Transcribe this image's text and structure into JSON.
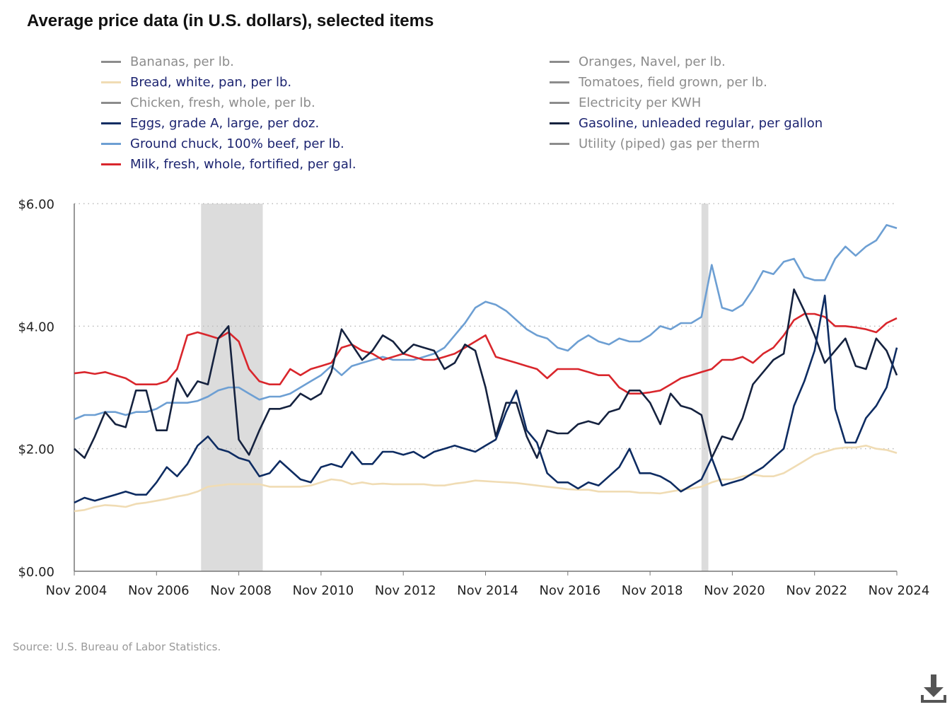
{
  "title": "Average price data (in U.S. dollars), selected items",
  "legend": {
    "left": [
      {
        "label": "Bananas, per lb.",
        "selected": false,
        "color": "#8c8c8c"
      },
      {
        "label": "Bread, white, pan, per lb.",
        "selected": true,
        "color": "#f0dcb4"
      },
      {
        "label": "Chicken, fresh, whole, per lb.",
        "selected": false,
        "color": "#8c8c8c"
      },
      {
        "label": "Eggs, grade A, large, per doz.",
        "selected": true,
        "color": "#0e2c62"
      },
      {
        "label": "Ground chuck, 100% beef, per lb.",
        "selected": true,
        "color": "#6d9fd3"
      },
      {
        "label": "Milk, fresh, whole, fortified, per gal.",
        "selected": true,
        "color": "#d9262c"
      }
    ],
    "right": [
      {
        "label": "Oranges, Navel, per lb.",
        "selected": false,
        "color": "#8c8c8c"
      },
      {
        "label": "Tomatoes, field grown, per lb.",
        "selected": false,
        "color": "#8c8c8c"
      },
      {
        "label": "Electricity per KWH",
        "selected": false,
        "color": "#8c8c8c"
      },
      {
        "label": "Gasoline, unleaded regular, per gallon",
        "selected": true,
        "color": "#15223f"
      },
      {
        "label": "Utility (piped) gas per therm",
        "selected": false,
        "color": "#8c8c8c"
      }
    ]
  },
  "source": "Source: U.S. Bureau of Labor Statistics.",
  "download_icon": "download-icon",
  "chart_data": {
    "type": "line",
    "title": "Average price data (in U.S. dollars), selected items",
    "xlabel": "",
    "ylabel": "",
    "ylim": [
      0,
      6
    ],
    "yticks": [
      0,
      2,
      4,
      6
    ],
    "ytick_labels": [
      "$0.00",
      "$2.00",
      "$4.00",
      "$6.00"
    ],
    "xlim": [
      "2004-11",
      "2024-11"
    ],
    "xticks": [
      "2004-11",
      "2006-11",
      "2008-11",
      "2010-11",
      "2012-11",
      "2014-11",
      "2016-11",
      "2018-11",
      "2020-11",
      "2022-11",
      "2024-11"
    ],
    "xtick_labels": [
      "Nov 2004",
      "Nov 2006",
      "Nov 2008",
      "Nov 2010",
      "Nov 2012",
      "Nov 2014",
      "Nov 2016",
      "Nov 2018",
      "Nov 2020",
      "Nov 2022",
      "Nov 2024"
    ],
    "grid": "horizontal dotted",
    "legend_position": "top",
    "shaded_periods": [
      [
        "2007-12",
        "2009-06"
      ],
      [
        "2020-02",
        "2020-04"
      ]
    ],
    "shade_color": "#dcdcdc",
    "x": [
      "2004-11",
      "2005-02",
      "2005-05",
      "2005-08",
      "2005-11",
      "2006-02",
      "2006-05",
      "2006-08",
      "2006-11",
      "2007-02",
      "2007-05",
      "2007-08",
      "2007-11",
      "2008-02",
      "2008-05",
      "2008-08",
      "2008-11",
      "2009-02",
      "2009-05",
      "2009-08",
      "2009-11",
      "2010-02",
      "2010-05",
      "2010-08",
      "2010-11",
      "2011-02",
      "2011-05",
      "2011-08",
      "2011-11",
      "2012-02",
      "2012-05",
      "2012-08",
      "2012-11",
      "2013-02",
      "2013-05",
      "2013-08",
      "2013-11",
      "2014-02",
      "2014-05",
      "2014-08",
      "2014-11",
      "2015-02",
      "2015-05",
      "2015-08",
      "2015-11",
      "2016-02",
      "2016-05",
      "2016-08",
      "2016-11",
      "2017-02",
      "2017-05",
      "2017-08",
      "2017-11",
      "2018-02",
      "2018-05",
      "2018-08",
      "2018-11",
      "2019-02",
      "2019-05",
      "2019-08",
      "2019-11",
      "2020-02",
      "2020-05",
      "2020-08",
      "2020-11",
      "2021-02",
      "2021-05",
      "2021-08",
      "2021-11",
      "2022-02",
      "2022-05",
      "2022-08",
      "2022-11",
      "2023-02",
      "2023-05",
      "2023-08",
      "2023-11",
      "2024-02",
      "2024-05",
      "2024-08",
      "2024-11"
    ],
    "series": [
      {
        "name": "Bread, white, pan, per lb.",
        "color": "#f0dcb4",
        "values": [
          0.98,
          1.0,
          1.05,
          1.08,
          1.07,
          1.05,
          1.1,
          1.12,
          1.15,
          1.18,
          1.22,
          1.25,
          1.3,
          1.38,
          1.4,
          1.42,
          1.42,
          1.42,
          1.42,
          1.38,
          1.38,
          1.38,
          1.38,
          1.4,
          1.45,
          1.5,
          1.48,
          1.42,
          1.45,
          1.42,
          1.43,
          1.42,
          1.42,
          1.42,
          1.42,
          1.4,
          1.4,
          1.43,
          1.45,
          1.48,
          1.47,
          1.46,
          1.45,
          1.44,
          1.42,
          1.4,
          1.38,
          1.36,
          1.34,
          1.33,
          1.33,
          1.3,
          1.3,
          1.3,
          1.3,
          1.28,
          1.28,
          1.27,
          1.3,
          1.33,
          1.35,
          1.38,
          1.45,
          1.5,
          1.5,
          1.55,
          1.58,
          1.55,
          1.55,
          1.6,
          1.7,
          1.8,
          1.9,
          1.95,
          2.0,
          2.02,
          2.02,
          2.05,
          2.0,
          1.98,
          1.93
        ]
      },
      {
        "name": "Ground chuck, 100% beef, per lb.",
        "color": "#6d9fd3",
        "values": [
          2.48,
          2.55,
          2.55,
          2.6,
          2.6,
          2.55,
          2.6,
          2.6,
          2.65,
          2.75,
          2.75,
          2.75,
          2.78,
          2.85,
          2.95,
          3.0,
          3.0,
          2.9,
          2.8,
          2.85,
          2.85,
          2.9,
          3.0,
          3.1,
          3.2,
          3.35,
          3.2,
          3.35,
          3.4,
          3.45,
          3.5,
          3.45,
          3.45,
          3.45,
          3.5,
          3.55,
          3.65,
          3.85,
          4.05,
          4.3,
          4.4,
          4.35,
          4.25,
          4.1,
          3.95,
          3.85,
          3.8,
          3.65,
          3.6,
          3.75,
          3.85,
          3.75,
          3.7,
          3.8,
          3.75,
          3.75,
          3.85,
          4.0,
          3.95,
          4.05,
          4.05,
          4.15,
          5.0,
          4.3,
          4.25,
          4.35,
          4.6,
          4.9,
          4.85,
          5.05,
          5.1,
          4.8,
          4.75,
          4.75,
          5.1,
          5.3,
          5.15,
          5.3,
          5.4,
          5.65,
          5.6
        ]
      },
      {
        "name": "Milk, fresh, whole, fortified, per gal.",
        "color": "#d9262c",
        "values": [
          3.23,
          3.25,
          3.22,
          3.25,
          3.2,
          3.15,
          3.05,
          3.05,
          3.05,
          3.1,
          3.3,
          3.85,
          3.9,
          3.85,
          3.8,
          3.9,
          3.75,
          3.3,
          3.1,
          3.05,
          3.05,
          3.3,
          3.2,
          3.3,
          3.35,
          3.4,
          3.65,
          3.7,
          3.6,
          3.55,
          3.45,
          3.5,
          3.55,
          3.5,
          3.45,
          3.45,
          3.5,
          3.55,
          3.65,
          3.75,
          3.85,
          3.5,
          3.45,
          3.4,
          3.35,
          3.3,
          3.15,
          3.3,
          3.3,
          3.3,
          3.25,
          3.2,
          3.2,
          3.0,
          2.9,
          2.9,
          2.92,
          2.95,
          3.05,
          3.15,
          3.2,
          3.25,
          3.3,
          3.45,
          3.45,
          3.5,
          3.4,
          3.55,
          3.65,
          3.85,
          4.1,
          4.2,
          4.2,
          4.15,
          4.0,
          4.0,
          3.98,
          3.95,
          3.9,
          4.05,
          4.13
        ]
      },
      {
        "name": "Gasoline, unleaded regular, per gallon",
        "color": "#15223f",
        "values": [
          2.0,
          1.85,
          2.2,
          2.6,
          2.4,
          2.35,
          2.95,
          2.95,
          2.3,
          2.3,
          3.15,
          2.85,
          3.1,
          3.05,
          3.8,
          4.0,
          2.15,
          1.9,
          2.3,
          2.65,
          2.65,
          2.7,
          2.9,
          2.8,
          2.9,
          3.25,
          3.95,
          3.7,
          3.45,
          3.6,
          3.85,
          3.75,
          3.55,
          3.7,
          3.65,
          3.6,
          3.3,
          3.4,
          3.7,
          3.6,
          3.0,
          2.2,
          2.75,
          2.75,
          2.2,
          1.85,
          2.3,
          2.25,
          2.25,
          2.4,
          2.45,
          2.4,
          2.6,
          2.65,
          2.95,
          2.95,
          2.75,
          2.4,
          2.9,
          2.7,
          2.65,
          2.55,
          1.85,
          2.2,
          2.15,
          2.5,
          3.05,
          3.25,
          3.45,
          3.55,
          4.6,
          4.25,
          3.85,
          3.4,
          3.6,
          3.8,
          3.35,
          3.3,
          3.8,
          3.6,
          3.2
        ]
      },
      {
        "name": "Eggs, grade A, large, per doz.",
        "color": "#0e2c62",
        "values": [
          1.12,
          1.2,
          1.15,
          1.2,
          1.25,
          1.3,
          1.25,
          1.25,
          1.45,
          1.7,
          1.55,
          1.75,
          2.05,
          2.2,
          2.0,
          1.95,
          1.85,
          1.8,
          1.55,
          1.6,
          1.8,
          1.65,
          1.5,
          1.45,
          1.7,
          1.75,
          1.7,
          1.95,
          1.75,
          1.75,
          1.95,
          1.95,
          1.9,
          1.95,
          1.85,
          1.95,
          2.0,
          2.05,
          2.0,
          1.95,
          2.05,
          2.15,
          2.6,
          2.95,
          2.3,
          2.1,
          1.6,
          1.45,
          1.45,
          1.35,
          1.45,
          1.4,
          1.55,
          1.7,
          2.0,
          1.6,
          1.6,
          1.55,
          1.45,
          1.3,
          1.4,
          1.5,
          1.85,
          1.4,
          1.45,
          1.5,
          1.6,
          1.7,
          1.85,
          2.0,
          2.7,
          3.1,
          3.6,
          4.5,
          2.65,
          2.1,
          2.1,
          2.5,
          2.7,
          3.0,
          3.65
        ]
      }
    ]
  }
}
